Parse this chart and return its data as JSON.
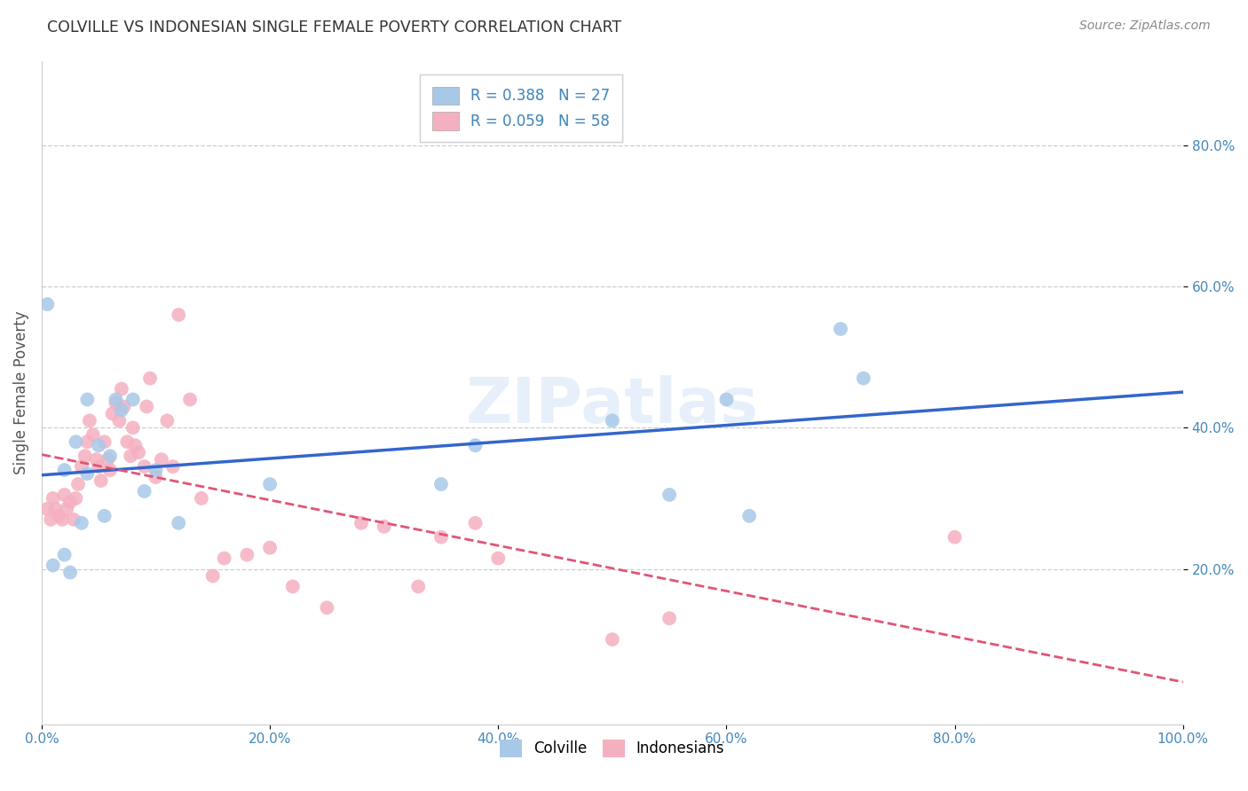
{
  "title": "COLVILLE VS INDONESIAN SINGLE FEMALE POVERTY CORRELATION CHART",
  "source": "Source: ZipAtlas.com",
  "ylabel": "Single Female Poverty",
  "colville_R": 0.388,
  "colville_N": 27,
  "indonesian_R": 0.059,
  "indonesian_N": 58,
  "colville_color": "#a8c8e8",
  "indonesian_color": "#f5b0c0",
  "colville_line_color": "#3366cc",
  "indonesian_line_color": "#e05575",
  "background_color": "#ffffff",
  "grid_color": "#cccccc",
  "watermark": "ZIPatlas",
  "xlim": [
    0.0,
    1.0
  ],
  "ylim": [
    -0.02,
    0.92
  ],
  "xticks": [
    0.0,
    0.2,
    0.4,
    0.6,
    0.8,
    1.0
  ],
  "yticks": [
    0.2,
    0.4,
    0.6,
    0.8
  ],
  "xticklabels": [
    "0.0%",
    "20.0%",
    "40.0%",
    "60.0%",
    "80.0%",
    "100.0%"
  ],
  "yticklabels": [
    "20.0%",
    "40.0%",
    "60.0%",
    "80.0%"
  ],
  "colville_x": [
    0.005,
    0.01,
    0.02,
    0.02,
    0.025,
    0.03,
    0.035,
    0.04,
    0.04,
    0.05,
    0.055,
    0.06,
    0.065,
    0.07,
    0.08,
    0.09,
    0.1,
    0.12,
    0.2,
    0.35,
    0.38,
    0.5,
    0.55,
    0.6,
    0.62,
    0.7,
    0.72
  ],
  "colville_y": [
    0.575,
    0.205,
    0.22,
    0.34,
    0.195,
    0.38,
    0.265,
    0.44,
    0.335,
    0.375,
    0.275,
    0.36,
    0.44,
    0.425,
    0.44,
    0.31,
    0.34,
    0.265,
    0.32,
    0.32,
    0.375,
    0.41,
    0.305,
    0.44,
    0.275,
    0.54,
    0.47
  ],
  "indonesian_x": [
    0.005,
    0.008,
    0.01,
    0.012,
    0.015,
    0.018,
    0.02,
    0.022,
    0.025,
    0.028,
    0.03,
    0.032,
    0.035,
    0.038,
    0.04,
    0.042,
    0.045,
    0.048,
    0.05,
    0.052,
    0.055,
    0.058,
    0.06,
    0.062,
    0.065,
    0.068,
    0.07,
    0.072,
    0.075,
    0.078,
    0.08,
    0.082,
    0.085,
    0.09,
    0.092,
    0.095,
    0.1,
    0.105,
    0.11,
    0.115,
    0.12,
    0.13,
    0.14,
    0.15,
    0.16,
    0.18,
    0.2,
    0.22,
    0.25,
    0.28,
    0.3,
    0.33,
    0.35,
    0.38,
    0.4,
    0.5,
    0.55,
    0.8
  ],
  "indonesian_y": [
    0.285,
    0.27,
    0.3,
    0.285,
    0.275,
    0.27,
    0.305,
    0.285,
    0.295,
    0.27,
    0.3,
    0.32,
    0.345,
    0.36,
    0.38,
    0.41,
    0.39,
    0.355,
    0.345,
    0.325,
    0.38,
    0.355,
    0.34,
    0.42,
    0.435,
    0.41,
    0.455,
    0.43,
    0.38,
    0.36,
    0.4,
    0.375,
    0.365,
    0.345,
    0.43,
    0.47,
    0.33,
    0.355,
    0.41,
    0.345,
    0.56,
    0.44,
    0.3,
    0.19,
    0.215,
    0.22,
    0.23,
    0.175,
    0.145,
    0.265,
    0.26,
    0.175,
    0.245,
    0.265,
    0.215,
    0.1,
    0.13,
    0.245
  ]
}
